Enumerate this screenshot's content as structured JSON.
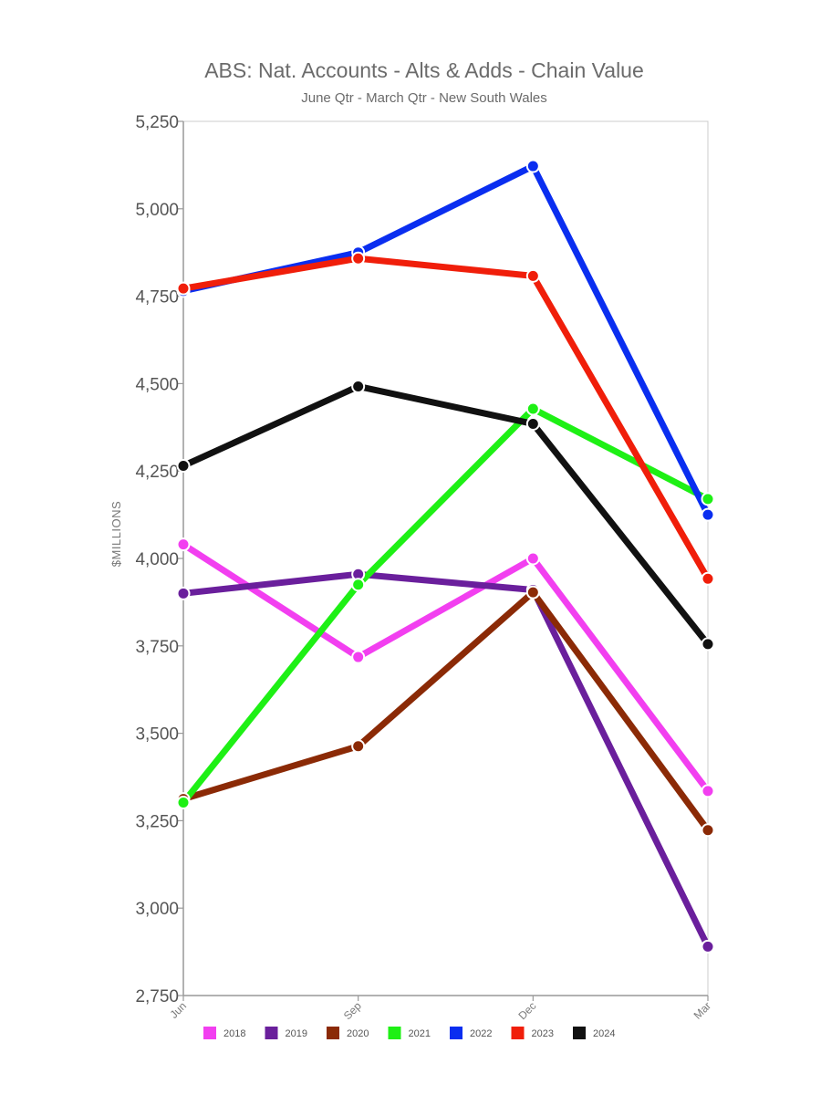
{
  "chart_data": {
    "type": "line",
    "title": "ABS: Nat. Accounts - Alts & Adds - Chain Value",
    "subtitle": "June Qtr - March Qtr - New South Wales",
    "ylabel": "$MILLIONS",
    "xlabel": "",
    "categories": [
      "Jun",
      "Sep",
      "Dec",
      "Mar"
    ],
    "ylim": [
      2750,
      5250
    ],
    "yticks": [
      2750,
      3000,
      3250,
      3500,
      3750,
      4000,
      4250,
      4500,
      4750,
      5000,
      5250
    ],
    "ytick_labels": [
      "2,750",
      "3,000",
      "3,250",
      "3,500",
      "3,750",
      "4,000",
      "4,250",
      "4,500",
      "4,750",
      "5,000",
      "5,250"
    ],
    "grid": false,
    "legend_position": "bottom",
    "series": [
      {
        "name": "2018",
        "color": "#f23ff0",
        "values": [
          4040,
          3718,
          4000,
          3335
        ]
      },
      {
        "name": "2019",
        "color": "#6a1f9c",
        "values": [
          3900,
          3955,
          3910,
          2890
        ]
      },
      {
        "name": "2020",
        "color": "#8b2a06",
        "values": [
          3312,
          3463,
          3903,
          3223
        ]
      },
      {
        "name": "2021",
        "color": "#1ef015",
        "values": [
          3302,
          3925,
          4428,
          4170
        ]
      },
      {
        "name": "2022",
        "color": "#0a2ef0",
        "values": [
          4765,
          4875,
          5122,
          4125
        ]
      },
      {
        "name": "2023",
        "color": "#f01e0a",
        "values": [
          4772,
          4858,
          4808,
          3942
        ]
      },
      {
        "name": "2024",
        "color": "#111111",
        "values": [
          4265,
          4492,
          4385,
          3755
        ]
      }
    ]
  }
}
